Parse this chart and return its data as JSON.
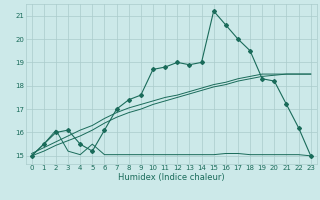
{
  "title": "",
  "xlabel": "Humidex (Indice chaleur)",
  "bg_color": "#cce9e9",
  "grid_color": "#aacccc",
  "line_color": "#1a6b5a",
  "xlim": [
    -0.5,
    23.5
  ],
  "ylim": [
    14.65,
    21.5
  ],
  "xticks": [
    0,
    1,
    2,
    3,
    4,
    5,
    6,
    7,
    8,
    9,
    10,
    11,
    12,
    13,
    14,
    15,
    16,
    17,
    18,
    19,
    20,
    21,
    22,
    23
  ],
  "yticks": [
    15,
    16,
    17,
    18,
    19,
    20,
    21
  ],
  "line1_x": [
    0,
    1,
    2,
    3,
    4,
    5,
    6,
    7,
    8,
    9,
    10,
    11,
    12,
    13,
    14,
    15,
    16,
    17,
    18,
    19,
    20,
    21,
    22,
    23
  ],
  "line1_y": [
    15.0,
    15.5,
    16.0,
    16.1,
    15.5,
    15.2,
    16.1,
    17.0,
    17.4,
    17.6,
    18.7,
    18.8,
    19.0,
    18.9,
    19.0,
    21.2,
    20.6,
    20.0,
    19.5,
    18.3,
    18.2,
    17.2,
    16.2,
    15.0
  ],
  "line2_x": [
    0,
    1,
    2,
    3,
    4,
    5,
    6,
    7,
    8,
    9,
    10,
    11,
    12,
    13,
    14,
    15,
    16,
    17,
    18,
    19,
    20,
    21,
    22,
    23
  ],
  "line2_y": [
    15.1,
    15.35,
    15.6,
    15.85,
    16.1,
    16.3,
    16.6,
    16.85,
    17.05,
    17.2,
    17.35,
    17.5,
    17.6,
    17.75,
    17.9,
    18.05,
    18.15,
    18.3,
    18.4,
    18.5,
    18.5,
    18.5,
    18.5,
    18.5
  ],
  "line3_x": [
    0,
    1,
    2,
    3,
    4,
    5,
    6,
    7,
    8,
    9,
    10,
    11,
    12,
    13,
    14,
    15,
    16,
    17,
    18,
    19,
    20,
    21,
    22,
    23
  ],
  "line3_y": [
    15.0,
    15.2,
    15.45,
    15.65,
    15.85,
    16.1,
    16.4,
    16.65,
    16.85,
    17.0,
    17.2,
    17.35,
    17.5,
    17.65,
    17.8,
    17.95,
    18.05,
    18.2,
    18.3,
    18.4,
    18.45,
    18.5,
    18.5,
    18.5
  ],
  "line4_x": [
    0,
    1,
    2,
    3,
    4,
    5,
    6,
    7,
    8,
    9,
    10,
    11,
    12,
    13,
    14,
    15,
    16,
    17,
    18,
    19,
    20,
    21,
    22,
    23
  ],
  "line4_y": [
    15.0,
    15.5,
    16.1,
    15.2,
    15.05,
    15.5,
    15.05,
    15.05,
    15.05,
    15.05,
    15.05,
    15.05,
    15.05,
    15.05,
    15.05,
    15.05,
    15.1,
    15.1,
    15.05,
    15.05,
    15.05,
    15.05,
    15.05,
    15.0
  ]
}
